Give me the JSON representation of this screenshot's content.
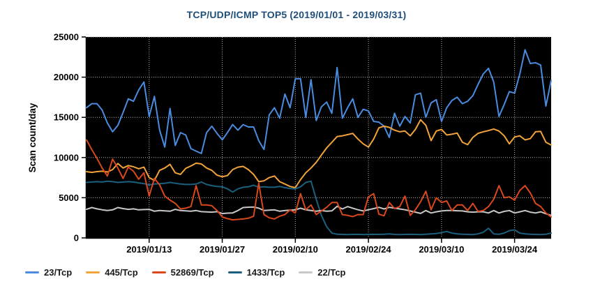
{
  "title": "TCP/UDP/ICMP TOP5 (2019/01/01 - 2019/03/31)",
  "colors": {
    "title": "#1F4E79",
    "plot_background": "#000000",
    "gridline": "#b5b5b5",
    "axis": "#000000"
  },
  "chart_data": {
    "type": "line",
    "title": "TCP/UDP/ICMP TOP5 (2019/01/01 - 2019/03/31)",
    "xlabel": "",
    "ylabel": "Scan count/day",
    "ylim": [
      0,
      25000
    ],
    "y_ticks": [
      0,
      5000,
      10000,
      15000,
      20000,
      25000
    ],
    "y_tick_labels": [
      "0",
      "5000",
      "10000",
      "15000",
      "20000",
      "25000"
    ],
    "x_start_date": "2019/01/01",
    "x_end_date": "2019/03/31",
    "x_unit": "day",
    "x_range_days": [
      0,
      89
    ],
    "x_tick_days": [
      12,
      26,
      40,
      54,
      68,
      82
    ],
    "x_tick_labels": [
      "2019/01/13",
      "2019/01/27",
      "2019/02/10",
      "2019/02/24",
      "2019/03/10",
      "2019/03/24"
    ],
    "grid": "dotted",
    "plot_background": "black",
    "legend_position": "bottom-left",
    "series": [
      {
        "name": "23/Tcp",
        "color": "#4A8CDF",
        "values": [
          16200,
          16700,
          16700,
          15900,
          14300,
          13200,
          14000,
          15600,
          17300,
          17000,
          18400,
          19400,
          15100,
          17600,
          13400,
          11300,
          16100,
          11500,
          13100,
          12800,
          11100,
          10800,
          10500,
          13100,
          13900,
          13000,
          12200,
          13100,
          14100,
          13400,
          14100,
          13800,
          13800,
          12100,
          11000,
          15300,
          16200,
          14900,
          17900,
          16200,
          19800,
          19800,
          15000,
          19700,
          14600,
          16300,
          16900,
          15500,
          21200,
          14900,
          16200,
          17300,
          15000,
          16000,
          15800,
          14500,
          14400,
          13900,
          12500,
          15500,
          13900,
          15100,
          14300,
          17800,
          18000,
          15000,
          16800,
          17200,
          14500,
          16200,
          17100,
          17500,
          16700,
          17000,
          17700,
          19100,
          20400,
          21100,
          19400,
          15100,
          16600,
          18200,
          18000,
          20400,
          23400,
          21700,
          21800,
          21500,
          16400,
          19600
        ]
      },
      {
        "name": "445/Tcp",
        "color": "#F2A33A",
        "values": [
          8250,
          8150,
          8250,
          8300,
          8200,
          8500,
          9250,
          8700,
          9000,
          8850,
          8600,
          8800,
          7500,
          7150,
          8400,
          8700,
          9150,
          8100,
          7900,
          8650,
          8950,
          9300,
          9200,
          8700,
          8400,
          7800,
          7600,
          7750,
          8500,
          8800,
          8900,
          8500,
          7900,
          7000,
          7100,
          7500,
          7700,
          7000,
          6700,
          6400,
          6250,
          7250,
          8100,
          8700,
          9400,
          10300,
          11200,
          11900,
          12600,
          12700,
          12850,
          13000,
          12300,
          11700,
          11300,
          12300,
          13700,
          13900,
          13750,
          13400,
          13200,
          13300,
          12700,
          13500,
          14700,
          14000,
          12100,
          13300,
          13500,
          12800,
          12900,
          13050,
          11900,
          11600,
          12500,
          13000,
          13200,
          13350,
          13550,
          13300,
          12700,
          11700,
          12550,
          12700,
          12200,
          12350,
          13200,
          13250,
          11900,
          11550
        ]
      },
      {
        "name": "52869/Tcp",
        "color": "#D9481C",
        "values": [
          12200,
          11000,
          9900,
          8700,
          7700,
          9800,
          8700,
          7400,
          8800,
          8300,
          7300,
          8100,
          5200,
          7400,
          6600,
          5200,
          4700,
          4300,
          3600,
          3700,
          3900,
          6500,
          4100,
          4100,
          4000,
          3400,
          2600,
          2400,
          2250,
          2300,
          2350,
          2450,
          2700,
          6800,
          2900,
          2500,
          2350,
          2700,
          2900,
          3500,
          3100,
          5500,
          3500,
          4100,
          2900,
          3350,
          3800,
          4400,
          4400,
          2900,
          2800,
          2650,
          2900,
          2900,
          5100,
          5500,
          2950,
          2750,
          4400,
          3650,
          3900,
          5200,
          2800,
          3500,
          4500,
          5800,
          3500,
          5000,
          4400,
          4600,
          3400,
          4100,
          4100,
          3400,
          4300,
          3300,
          3400,
          3900,
          4800,
          6500,
          5000,
          5100,
          4700,
          5900,
          6500,
          5600,
          4300,
          3900,
          3100,
          2600
        ]
      },
      {
        "name": "1433/Tcp",
        "color": "#1B607E",
        "values": [
          6900,
          6950,
          7000,
          6950,
          7050,
          7000,
          6900,
          6950,
          7000,
          6950,
          6850,
          6750,
          6600,
          6700,
          6750,
          6800,
          6900,
          6800,
          6700,
          6650,
          6650,
          6700,
          6950,
          6650,
          6500,
          6400,
          6350,
          6100,
          5700,
          6100,
          6300,
          6350,
          6550,
          6300,
          6350,
          6300,
          6300,
          6400,
          6250,
          6150,
          6100,
          6350,
          6900,
          7050,
          4800,
          2800,
          1400,
          600,
          450,
          430,
          420,
          430,
          440,
          420,
          430,
          440,
          430,
          450,
          500,
          430,
          420,
          430,
          440,
          430,
          420,
          450,
          500,
          550,
          650,
          800,
          600,
          500,
          450,
          430,
          420,
          500,
          700,
          1200,
          500,
          450,
          600,
          900,
          1000,
          600,
          500,
          450,
          430,
          420,
          450,
          600
        ]
      },
      {
        "name": "22/Tcp",
        "color": "#C8C8C8",
        "values": [
          3550,
          3780,
          3610,
          3500,
          3400,
          3490,
          3780,
          3650,
          3550,
          3610,
          3490,
          3520,
          3550,
          3320,
          3400,
          3360,
          3320,
          3550,
          3400,
          3360,
          3320,
          3400,
          3260,
          3230,
          3200,
          3260,
          3030,
          3080,
          3110,
          3400,
          3780,
          3820,
          3840,
          3700,
          3400,
          3450,
          3490,
          3320,
          3400,
          3450,
          3490,
          3700,
          3490,
          3400,
          3320,
          3400,
          3320,
          3360,
          3930,
          3600,
          3900,
          3700,
          3500,
          3350,
          3500,
          3650,
          3800,
          3600,
          3800,
          3700,
          3600,
          3500,
          3350,
          3200,
          3050,
          3400,
          3100,
          3250,
          3350,
          3400,
          3400,
          3380,
          3350,
          3250,
          3200,
          3250,
          3250,
          3100,
          3400,
          3100,
          3300,
          3400,
          3100,
          3250,
          3400,
          3200,
          3100,
          3250,
          3000,
          2800
        ]
      }
    ]
  }
}
